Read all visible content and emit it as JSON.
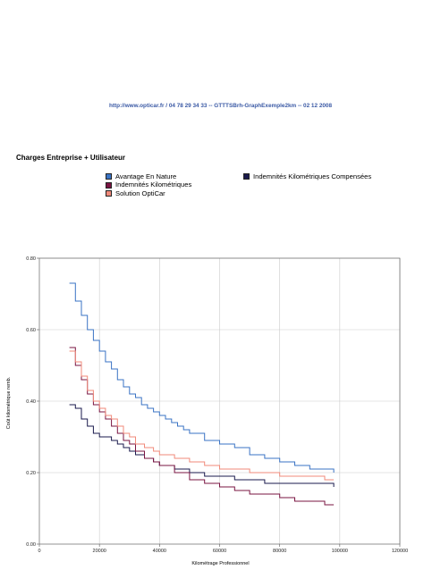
{
  "header": {
    "url_line": "http://www.opticar.fr / 04 78 29 34 33 -- GTTTSBrh-GraphExemple2km -- 02 12 2008"
  },
  "chart_data": {
    "type": "line",
    "title": "Charges Entreprise + Utilisateur",
    "xlabel": "Kilométrage Professionnel",
    "ylabel": "Coût kilométrique remb.",
    "xlim": [
      0,
      120000
    ],
    "ylim": [
      0,
      0.8
    ],
    "x_ticks": [
      "0",
      "20000",
      "40000",
      "60000",
      "80000",
      "100000",
      "120000"
    ],
    "y_ticks": [
      "0.00",
      "0.20",
      "0.40",
      "0.60",
      "0.80"
    ],
    "legend_placement": "top",
    "series": [
      {
        "name": "Avantage En Nature",
        "color": "#3a73c4",
        "x": [
          10000,
          12000,
          14000,
          16000,
          18000,
          20000,
          22000,
          24000,
          26000,
          28000,
          30000,
          32000,
          34000,
          36000,
          38000,
          40000,
          42000,
          44000,
          46000,
          48000,
          50000,
          55000,
          60000,
          65000,
          70000,
          75000,
          80000,
          85000,
          90000,
          95000,
          98000
        ],
        "y": [
          0.73,
          0.68,
          0.64,
          0.6,
          0.57,
          0.54,
          0.51,
          0.49,
          0.46,
          0.44,
          0.42,
          0.41,
          0.39,
          0.38,
          0.37,
          0.36,
          0.35,
          0.34,
          0.33,
          0.32,
          0.31,
          0.29,
          0.28,
          0.27,
          0.25,
          0.24,
          0.23,
          0.22,
          0.21,
          0.21,
          0.2
        ]
      },
      {
        "name": "Indemnités Kilométriques Compensées",
        "color": "#1a1a4d",
        "x": [
          10000,
          12000,
          14000,
          16000,
          18000,
          20000,
          22000,
          24000,
          26000,
          28000,
          30000,
          32000,
          35000,
          38000,
          40000,
          45000,
          50000,
          55000,
          60000,
          65000,
          70000,
          75000,
          80000,
          85000,
          90000,
          95000,
          98000
        ],
        "y": [
          0.39,
          0.38,
          0.35,
          0.33,
          0.31,
          0.3,
          0.3,
          0.29,
          0.28,
          0.27,
          0.26,
          0.25,
          0.24,
          0.23,
          0.22,
          0.21,
          0.2,
          0.19,
          0.19,
          0.18,
          0.18,
          0.17,
          0.17,
          0.17,
          0.17,
          0.17,
          0.16
        ]
      },
      {
        "name": "Indemnités Kilométriques",
        "color": "#7a1442",
        "x": [
          10000,
          12000,
          14000,
          16000,
          18000,
          20000,
          22000,
          24000,
          26000,
          28000,
          30000,
          32000,
          35000,
          38000,
          40000,
          45000,
          50000,
          55000,
          60000,
          65000,
          70000,
          75000,
          80000,
          85000,
          90000,
          95000,
          98000
        ],
        "y": [
          0.55,
          0.5,
          0.46,
          0.42,
          0.39,
          0.37,
          0.35,
          0.33,
          0.31,
          0.29,
          0.28,
          0.26,
          0.24,
          0.23,
          0.22,
          0.2,
          0.18,
          0.17,
          0.16,
          0.15,
          0.14,
          0.14,
          0.13,
          0.12,
          0.12,
          0.11,
          0.11
        ]
      },
      {
        "name": "Solution OptiCar",
        "color": "#f08a7a",
        "x": [
          10000,
          12000,
          14000,
          16000,
          18000,
          20000,
          22000,
          24000,
          26000,
          28000,
          30000,
          32000,
          35000,
          38000,
          40000,
          45000,
          50000,
          55000,
          60000,
          65000,
          70000,
          75000,
          80000,
          85000,
          90000,
          95000,
          98000
        ],
        "y": [
          0.54,
          0.51,
          0.47,
          0.43,
          0.4,
          0.38,
          0.36,
          0.35,
          0.33,
          0.31,
          0.3,
          0.28,
          0.27,
          0.26,
          0.25,
          0.24,
          0.23,
          0.22,
          0.21,
          0.21,
          0.2,
          0.2,
          0.19,
          0.19,
          0.19,
          0.18,
          0.18
        ]
      }
    ]
  }
}
